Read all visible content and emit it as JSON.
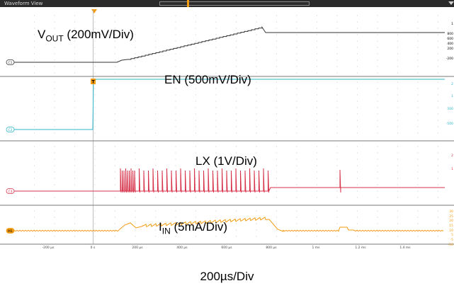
{
  "window": {
    "title": "Waveform View"
  },
  "labels": {
    "vout_main": "V",
    "vout_sub": "OUT",
    "vout_scale": " (200mV/Div)",
    "en": "EN (500mV/Div)",
    "lx": "LX (1V/Div)",
    "iin_main": "I",
    "iin_sub": "IN",
    "iin_scale": " (5mA/Div)"
  },
  "footer": {
    "timebase": "200µs/Div"
  },
  "colors": {
    "c1": "#333333",
    "c2": "#2bb5c8",
    "c3": "#d6324a",
    "m1": "#f39c12",
    "grid": "#c8c8c8"
  },
  "channels": [
    {
      "id": "C1",
      "color": "#333333",
      "scale_ticks": [
        "1",
        "800",
        "600",
        "400",
        "200",
        "-200"
      ]
    },
    {
      "id": "C2",
      "color": "#2bb5c8",
      "scale_ticks": [
        "2",
        "1",
        "500",
        "-500"
      ]
    },
    {
      "id": "C3",
      "color": "#d6324a",
      "scale_ticks": [
        "2",
        "1"
      ]
    },
    {
      "id": "M1",
      "color": "#f39c12",
      "scale_ticks": [
        "30",
        "25",
        "20",
        "15",
        "10",
        "5",
        "-5",
        "-10"
      ]
    }
  ],
  "time_axis": {
    "ticks": [
      "-200 µs",
      "0 s",
      "200 µs",
      "400 µs",
      "600 µs",
      "800 µs",
      "1 ms",
      "1.2 ms",
      "1.4 ms"
    ]
  },
  "trigger": {
    "label": "T"
  }
}
